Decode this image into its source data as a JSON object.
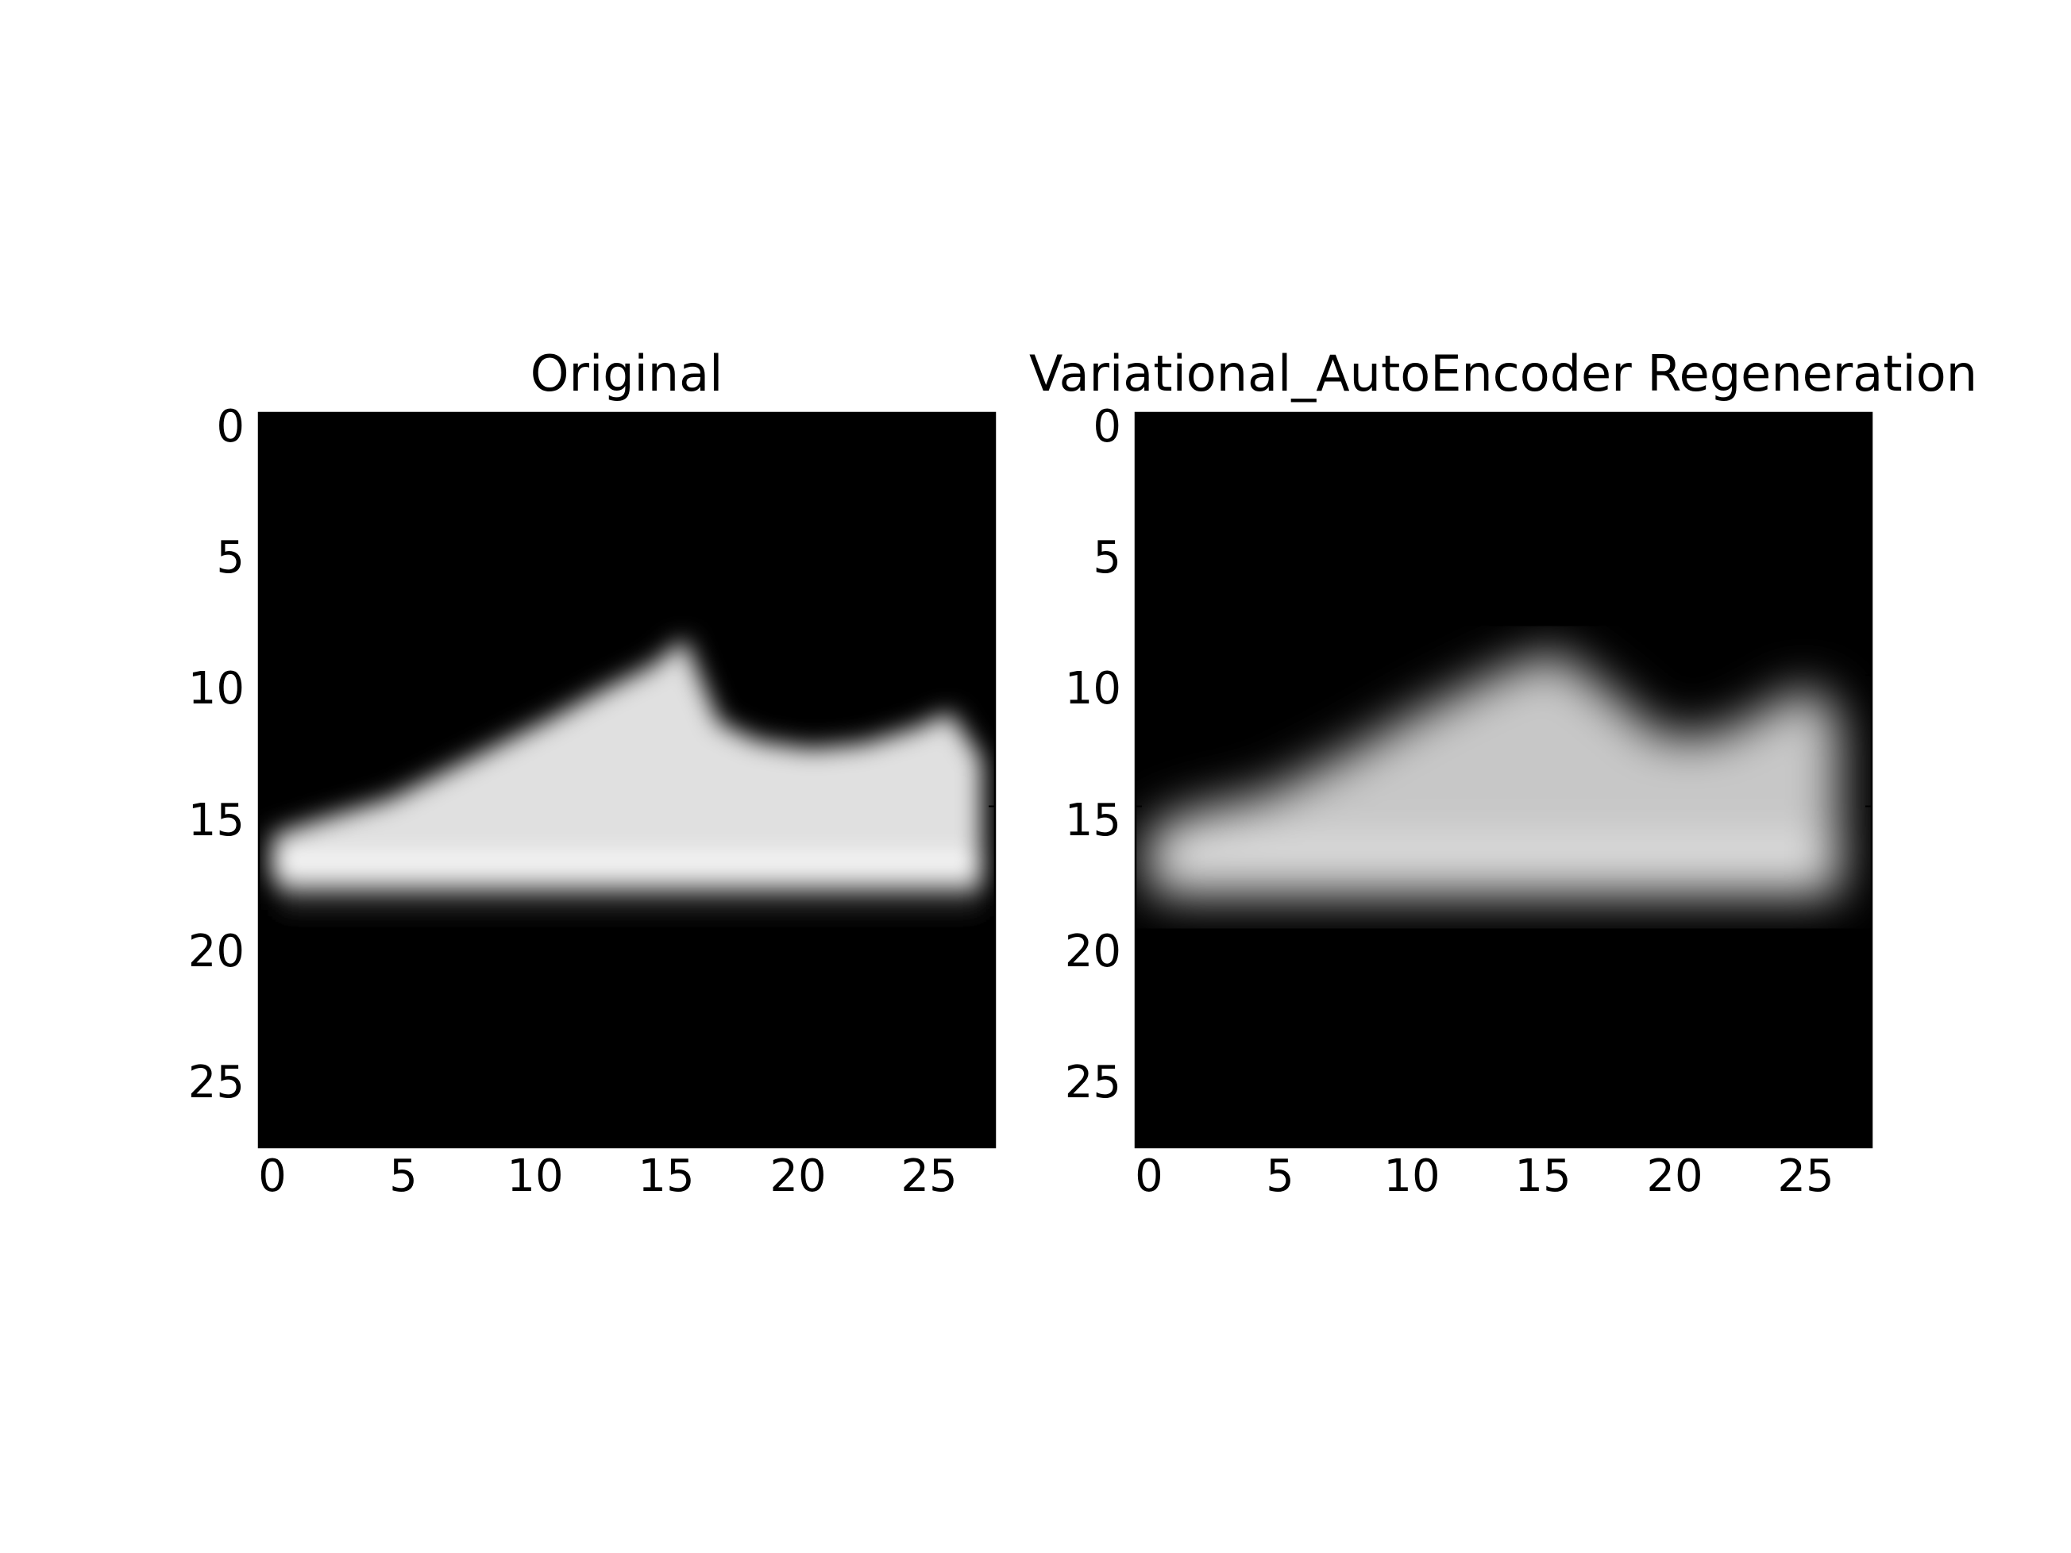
{
  "chart_data": [
    {
      "type": "heatmap",
      "title": "Original",
      "colormap": "gray",
      "xlim": [
        0,
        28
      ],
      "ylim": [
        28,
        0
      ],
      "xticks": [
        0,
        5,
        10,
        15,
        20,
        25
      ],
      "yticks": [
        0,
        5,
        10,
        15,
        20,
        25
      ],
      "xtick_labels": [
        "0",
        "5",
        "10",
        "15",
        "20",
        "25"
      ],
      "ytick_labels": [
        "0",
        "5",
        "10",
        "15",
        "20",
        "25"
      ],
      "sneaker": {
        "toe_x": 0.5,
        "heel_x": 27.5,
        "top_profile": [
          [
            0.5,
            16.1
          ],
          [
            2,
            15.6
          ],
          [
            5,
            14.7
          ],
          [
            8,
            13.2
          ],
          [
            11,
            11.7
          ],
          [
            13,
            10.6
          ],
          [
            15,
            9.6
          ],
          [
            16.2,
            8.6
          ],
          [
            17.5,
            11.8
          ],
          [
            19,
            12.5
          ],
          [
            21,
            12.8
          ],
          [
            23,
            12.6
          ],
          [
            25,
            12.0
          ],
          [
            26.3,
            11.4
          ],
          [
            27.5,
            13.2
          ]
        ],
        "upper_bottom": 16.9,
        "sole_top": 16.9,
        "sole_bottom": 17.8,
        "shadow_bottom": 18.9,
        "upper_brightness": 0.88,
        "sole_brightness": 1.0,
        "blur": 0.45
      }
    },
    {
      "type": "heatmap",
      "title": "Variational_AutoEncoder Regeneration",
      "colormap": "gray",
      "xlim": [
        0,
        28
      ],
      "ylim": [
        28,
        0
      ],
      "xticks": [
        0,
        5,
        10,
        15,
        20,
        25
      ],
      "yticks": [
        0,
        5,
        10,
        15,
        20,
        25
      ],
      "xtick_labels": [
        "0",
        "5",
        "10",
        "15",
        "20",
        "25"
      ],
      "ytick_labels": [
        "0",
        "5",
        "10",
        "15",
        "20",
        "25"
      ],
      "sneaker": {
        "toe_x": 0.5,
        "heel_x": 26.8,
        "top_profile": [
          [
            0.5,
            15.9
          ],
          [
            2,
            15.2
          ],
          [
            5,
            14.5
          ],
          [
            8,
            13.0
          ],
          [
            11,
            11.3
          ],
          [
            14,
            9.8
          ],
          [
            16,
            9.1
          ],
          [
            18,
            10.6
          ],
          [
            20,
            12.3
          ],
          [
            22,
            12.3
          ],
          [
            24,
            11.3
          ],
          [
            25.5,
            10.4
          ],
          [
            26.8,
            11.5
          ]
        ],
        "upper_bottom": 17.0,
        "sole_top": 16.7,
        "sole_bottom": 17.9,
        "shadow_bottom": 18.7,
        "upper_brightness": 0.78,
        "sole_brightness": 0.95,
        "blur": 0.9
      }
    }
  ]
}
